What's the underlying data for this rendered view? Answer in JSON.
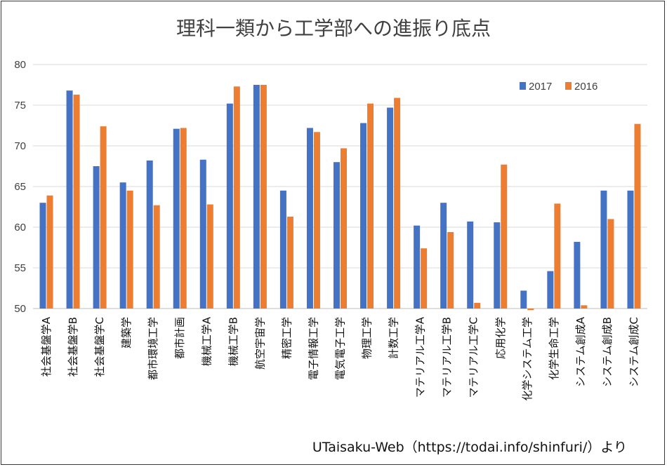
{
  "chart_data": {
    "type": "bar",
    "title": "理科一類から工学部への進振り底点",
    "source_note": "UTaisaku-Web（https://todai.info/shinfuri/）より",
    "categories": [
      "社会基盤学A",
      "社会基盤学B",
      "社会基盤学C",
      "建築学",
      "都市環境工学",
      "都市計画",
      "機械工学A",
      "機械工学B",
      "航空宇宙学",
      "精密工学",
      "電子情報工学",
      "電気電子工学",
      "物理工学",
      "計数工学",
      "マテリアル工学A",
      "マテリアル工学B",
      "マテリアル工学C",
      "応用化学",
      "化学システム工学",
      "化学生命工学",
      "システム創成A",
      "システム創成B",
      "システム創成C"
    ],
    "series": [
      {
        "name": "2017",
        "color": "#4472C4",
        "values": [
          63.0,
          76.8,
          67.5,
          65.5,
          68.2,
          72.1,
          68.3,
          75.2,
          77.5,
          64.5,
          72.2,
          68.0,
          72.8,
          74.7,
          60.2,
          63.0,
          60.7,
          60.6,
          52.2,
          54.6,
          58.2,
          64.5,
          64.5
        ]
      },
      {
        "name": "2016",
        "color": "#ED7D31",
        "values": [
          63.9,
          76.3,
          72.4,
          64.5,
          62.7,
          72.2,
          62.8,
          77.3,
          77.5,
          61.3,
          71.7,
          69.7,
          75.2,
          75.9,
          57.4,
          59.4,
          50.7,
          67.7,
          49.8,
          62.9,
          50.4,
          61.0,
          72.7
        ]
      }
    ],
    "ylim": [
      50,
      80
    ],
    "yticks": [
      "50",
      "55",
      "60",
      "65",
      "70",
      "75",
      "80"
    ],
    "grid": true,
    "legend": "top-right"
  }
}
